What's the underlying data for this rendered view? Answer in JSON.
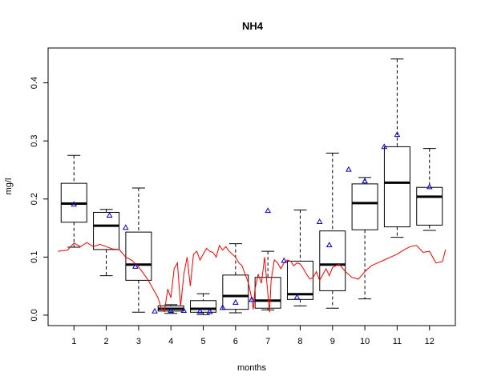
{
  "chart_data": {
    "type": "box",
    "title": "NH4",
    "xlabel": "months",
    "ylabel": "mg/l",
    "xlim": [
      0.2,
      12.8
    ],
    "ylim": [
      -0.018,
      0.46
    ],
    "xticks": [
      1,
      2,
      3,
      4,
      5,
      6,
      7,
      8,
      9,
      10,
      11,
      12
    ],
    "yticks": [
      0.0,
      0.1,
      0.2,
      0.3,
      0.4
    ],
    "ytick_labels": [
      "0.0",
      "0.1",
      "0.2",
      "0.3",
      "0.4"
    ],
    "grid": false,
    "colors": {
      "box": "#000000",
      "line": "#ff0000",
      "points": "#0000cd"
    },
    "boxes": [
      {
        "month": 1,
        "whisker_low": 0.117,
        "q1": 0.16,
        "median": 0.192,
        "q3": 0.227,
        "whisker_high": 0.275
      },
      {
        "month": 2,
        "whisker_low": 0.068,
        "q1": 0.113,
        "median": 0.154,
        "q3": 0.177,
        "whisker_high": 0.182
      },
      {
        "month": 3,
        "whisker_low": 0.005,
        "q1": 0.06,
        "median": 0.087,
        "q3": 0.143,
        "whisker_high": 0.219
      },
      {
        "month": 4,
        "whisker_low": 0.003,
        "q1": 0.007,
        "median": 0.011,
        "q3": 0.016,
        "whisker_high": 0.018
      },
      {
        "month": 5,
        "whisker_low": 0.001,
        "q1": 0.005,
        "median": 0.011,
        "q3": 0.025,
        "whisker_high": 0.037
      },
      {
        "month": 6,
        "whisker_low": 0.004,
        "q1": 0.01,
        "median": 0.033,
        "q3": 0.069,
        "whisker_high": 0.123
      },
      {
        "month": 7,
        "whisker_low": 0.009,
        "q1": 0.012,
        "median": 0.025,
        "q3": 0.065,
        "whisker_high": 0.11
      },
      {
        "month": 8,
        "whisker_low": 0.016,
        "q1": 0.027,
        "median": 0.036,
        "q3": 0.093,
        "whisker_high": 0.181
      },
      {
        "month": 9,
        "whisker_low": 0.012,
        "q1": 0.042,
        "median": 0.087,
        "q3": 0.145,
        "whisker_high": 0.279
      },
      {
        "month": 10,
        "whisker_low": 0.028,
        "q1": 0.147,
        "median": 0.193,
        "q3": 0.226,
        "whisker_high": 0.237
      },
      {
        "month": 11,
        "whisker_low": 0.134,
        "q1": 0.152,
        "median": 0.228,
        "q3": 0.29,
        "whisker_high": 0.441
      },
      {
        "month": 12,
        "whisker_low": 0.146,
        "q1": 0.155,
        "median": 0.204,
        "q3": 0.22,
        "whisker_high": 0.287
      }
    ],
    "triangle_points": [
      {
        "x": 1.0,
        "y": 0.191
      },
      {
        "x": 2.1,
        "y": 0.172
      },
      {
        "x": 2.6,
        "y": 0.151
      },
      {
        "x": 2.9,
        "y": 0.084
      },
      {
        "x": 3.5,
        "y": 0.007
      },
      {
        "x": 4.0,
        "y": 0.008
      },
      {
        "x": 4.4,
        "y": 0.008
      },
      {
        "x": 4.9,
        "y": 0.007
      },
      {
        "x": 5.2,
        "y": 0.006
      },
      {
        "x": 5.6,
        "y": 0.013
      },
      {
        "x": 6.0,
        "y": 0.022
      },
      {
        "x": 6.5,
        "y": 0.027
      },
      {
        "x": 7.0,
        "y": 0.18
      },
      {
        "x": 7.5,
        "y": 0.094
      },
      {
        "x": 7.9,
        "y": 0.031
      },
      {
        "x": 8.6,
        "y": 0.161
      },
      {
        "x": 8.9,
        "y": 0.121
      },
      {
        "x": 9.5,
        "y": 0.251
      },
      {
        "x": 10.0,
        "y": 0.231
      },
      {
        "x": 10.6,
        "y": 0.29
      },
      {
        "x": 11.0,
        "y": 0.311
      },
      {
        "x": 12.0,
        "y": 0.221
      }
    ],
    "line": {
      "x": [
        0.5,
        0.8,
        1.0,
        1.2,
        1.4,
        1.6,
        1.8,
        2.0,
        2.2,
        2.4,
        2.6,
        2.8,
        3.0,
        3.15,
        3.3,
        3.45,
        3.6,
        3.7,
        3.8,
        3.9,
        4.0,
        4.1,
        4.2,
        4.3,
        4.4,
        4.5,
        4.6,
        4.7,
        4.8,
        4.9,
        5.0,
        5.1,
        5.2,
        5.3,
        5.4,
        5.5,
        5.6,
        5.7,
        5.8,
        5.9,
        6.0,
        6.1,
        6.2,
        6.3,
        6.4,
        6.5,
        6.55,
        6.6,
        6.7,
        6.8,
        6.9,
        7.0,
        7.05,
        7.1,
        7.2,
        7.3,
        7.4,
        7.5,
        7.6,
        7.7,
        7.8,
        7.9,
        8.0,
        8.1,
        8.2,
        8.3,
        8.4,
        8.5,
        8.6,
        8.7,
        8.8,
        8.9,
        9.0,
        9.2,
        9.4,
        9.6,
        9.8,
        10.0,
        10.2,
        10.4,
        10.6,
        10.8,
        11.0,
        11.2,
        11.4,
        11.6,
        11.8,
        12.0,
        12.2,
        12.4,
        12.5
      ],
      "y": [
        0.11,
        0.112,
        0.124,
        0.118,
        0.125,
        0.118,
        0.122,
        0.118,
        0.114,
        0.113,
        0.1,
        0.094,
        0.083,
        0.072,
        0.06,
        0.045,
        0.03,
        0.012,
        0.006,
        0.045,
        0.03,
        0.08,
        0.09,
        0.015,
        0.07,
        0.1,
        0.05,
        0.105,
        0.11,
        0.095,
        0.105,
        0.115,
        0.11,
        0.108,
        0.1,
        0.12,
        0.112,
        0.118,
        0.11,
        0.105,
        0.1,
        0.09,
        0.085,
        0.07,
        0.055,
        0.028,
        0.01,
        0.045,
        0.07,
        0.055,
        0.1,
        0.035,
        0.005,
        0.06,
        0.095,
        0.09,
        0.08,
        0.09,
        0.095,
        0.093,
        0.085,
        0.09,
        0.088,
        0.08,
        0.07,
        0.062,
        0.065,
        0.075,
        0.06,
        0.07,
        0.08,
        0.068,
        0.082,
        0.088,
        0.075,
        0.065,
        0.062,
        0.075,
        0.085,
        0.09,
        0.095,
        0.1,
        0.105,
        0.112,
        0.118,
        0.12,
        0.108,
        0.11,
        0.09,
        0.092,
        0.113
      ]
    }
  }
}
